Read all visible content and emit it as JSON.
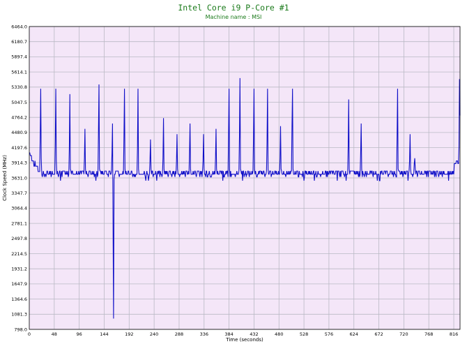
{
  "chart_data": {
    "type": "line",
    "title": "Intel Core i9 P-Core #1",
    "subtitle": "Machine name : MSI",
    "xlabel": "Time (seconds)",
    "ylabel": "Clock Speed (MHz)",
    "xlim": [
      0,
      828
    ],
    "ylim": [
      798.0,
      6464.0
    ],
    "x_ticks": [
      0,
      48,
      96,
      144,
      192,
      240,
      288,
      336,
      384,
      432,
      480,
      528,
      576,
      624,
      672,
      720,
      768,
      816
    ],
    "y_ticks": [
      "6464.0",
      "6180.7",
      "5897.4",
      "5614.1",
      "5330.8",
      "5047.5",
      "4764.2",
      "4480.9",
      "4197.6",
      "3914.3",
      "3631.0",
      "3347.7",
      "3064.4",
      "2781.1",
      "2497.8",
      "2214.5",
      "1931.2",
      "1647.9",
      "1364.6",
      "1081.3",
      "798.0"
    ],
    "grid": true,
    "legend": false,
    "colors": {
      "plot_bg": "#f4e6f8",
      "grid": "#b9b9c4",
      "line": "#1010c8",
      "title": "#1a7a1a"
    },
    "series": [
      {
        "baseline": 3700,
        "x": [
          0,
          1,
          2,
          3,
          4,
          5,
          6,
          7,
          8,
          9,
          10,
          11,
          12,
          13,
          14,
          15,
          16,
          17,
          18,
          19,
          20,
          21,
          22,
          23,
          24,
          25,
          26,
          27,
          28,
          29,
          30,
          31,
          32,
          33,
          34,
          35,
          36,
          37,
          38,
          39,
          40,
          41,
          42,
          43,
          44,
          45,
          46,
          47,
          48,
          49,
          50,
          51,
          52,
          53,
          54,
          55,
          56,
          57,
          58,
          59,
          60,
          61,
          62,
          63,
          64,
          65,
          66,
          67,
          68,
          69,
          70,
          71,
          72,
          73,
          74,
          75,
          76,
          77,
          78,
          79,
          80,
          81,
          82,
          83,
          84,
          85,
          86,
          87,
          88,
          89,
          90,
          91,
          92,
          93,
          94,
          95,
          96,
          97,
          98,
          99,
          100,
          101,
          102,
          103,
          104,
          105,
          106,
          107,
          108,
          109,
          110,
          111,
          112,
          113,
          114,
          115,
          116,
          117,
          118,
          119,
          120,
          121,
          122,
          123,
          124,
          125,
          126,
          127,
          128,
          129,
          130,
          131,
          132,
          133,
          134,
          135,
          136,
          137,
          138,
          139,
          140,
          141,
          142,
          143,
          144,
          145,
          146,
          147,
          148,
          149,
          150,
          151,
          152,
          153,
          154,
          155,
          156,
          157,
          158,
          159,
          160,
          161,
          162,
          163,
          164,
          165,
          166,
          167,
          168,
          169,
          170,
          171,
          172,
          173,
          174,
          175,
          176,
          177,
          178,
          179,
          180,
          181,
          182,
          183,
          184,
          185,
          186,
          187,
          188,
          189,
          190,
          191,
          192,
          193,
          194,
          195,
          196,
          197,
          198,
          199,
          200,
          201,
          202,
          203,
          204,
          205,
          206,
          207,
          208,
          209,
          210,
          211,
          212,
          213,
          214,
          215,
          216,
          217,
          218,
          219,
          220,
          221,
          222,
          223,
          224,
          225,
          226,
          227,
          228,
          229,
          230,
          231,
          232,
          233,
          234,
          235,
          236,
          237,
          238,
          239,
          240,
          241,
          242,
          243,
          244,
          245,
          246,
          247,
          248,
          249,
          250,
          251,
          252,
          253,
          254,
          255,
          256,
          257,
          258,
          259,
          260,
          261,
          262,
          263,
          264,
          265,
          266,
          267,
          268,
          269,
          270,
          271,
          272,
          273,
          274,
          275,
          276,
          277,
          278,
          279,
          280,
          281,
          282,
          283,
          284,
          285,
          286,
          287,
          288,
          289,
          290,
          291,
          292,
          293,
          294,
          295,
          296,
          297,
          298,
          299,
          300,
          301,
          302,
          303,
          304,
          305,
          306,
          307,
          308,
          309,
          310,
          311,
          312,
          313,
          314,
          315,
          316,
          317,
          318,
          319,
          320,
          321,
          322,
          323,
          324,
          325,
          326,
          327,
          328,
          329,
          330,
          331,
          332,
          333,
          334,
          335,
          336,
          337,
          338,
          339,
          340,
          341,
          342,
          343,
          344,
          345,
          346,
          347,
          348,
          349,
          350,
          351,
          352,
          353,
          354,
          355,
          356,
          357,
          358,
          359,
          360,
          361,
          362,
          363,
          364,
          365,
          366,
          367,
          368,
          369,
          370,
          371,
          372,
          373,
          374,
          375,
          376,
          377,
          378,
          379,
          380,
          381,
          382,
          383,
          384,
          385,
          386,
          387,
          388,
          389,
          390,
          391,
          392,
          393,
          394,
          395,
          396,
          397,
          398,
          399,
          400,
          401,
          402,
          403,
          404,
          405,
          406,
          407,
          408,
          409,
          410,
          411,
          412,
          413,
          414,
          415,
          416,
          417,
          418,
          419,
          420,
          421,
          422,
          423,
          424,
          425,
          426,
          427,
          428,
          429,
          430,
          431,
          432,
          433,
          434,
          435,
          436,
          437,
          438,
          439,
          440,
          441,
          442,
          443,
          444,
          445,
          446,
          447,
          448,
          449,
          450,
          451,
          452,
          453,
          454,
          455,
          456,
          457,
          458,
          459,
          460,
          461,
          462,
          463,
          464,
          465,
          466,
          467,
          468,
          469,
          470,
          471,
          472,
          473,
          474,
          475,
          476,
          477,
          478,
          479,
          480,
          481,
          482,
          483,
          484,
          485,
          486,
          487,
          488,
          489,
          490,
          491,
          492,
          493,
          494,
          495,
          496,
          497,
          498,
          499,
          500,
          501,
          502,
          503,
          504,
          505,
          506,
          507,
          508,
          509,
          510,
          511,
          512,
          513,
          514,
          515,
          516,
          517,
          518,
          519,
          520,
          521,
          522,
          523,
          524,
          525,
          526,
          527,
          528,
          529,
          530,
          531,
          532,
          533,
          534,
          535,
          536,
          537,
          538,
          539,
          540,
          541,
          542,
          543,
          544,
          545,
          546,
          547,
          548,
          549,
          550,
          551,
          552,
          553,
          554,
          555,
          556,
          557,
          558,
          559,
          560,
          561,
          562,
          563,
          564,
          565,
          566,
          567,
          568,
          569,
          570,
          571,
          572,
          573,
          574,
          575,
          576,
          577,
          578,
          579,
          580,
          581,
          582,
          583,
          584,
          585,
          586,
          587,
          588,
          589,
          590,
          591,
          592,
          593,
          594,
          595,
          596,
          597,
          598,
          599,
          600,
          601,
          602,
          603,
          604,
          605,
          606,
          607,
          608,
          609,
          610,
          611,
          612,
          613,
          614,
          615,
          616,
          617,
          618,
          619,
          620,
          621,
          622,
          623,
          624,
          625,
          626,
          627,
          628,
          629,
          630,
          631,
          632,
          633,
          634,
          635,
          636,
          637,
          638,
          639,
          640,
          641,
          642,
          643,
          644,
          645,
          646,
          647,
          648,
          649,
          650,
          651,
          652,
          653,
          654,
          655,
          656,
          657,
          658,
          659,
          660,
          661,
          662,
          663,
          664,
          665,
          666,
          667,
          668,
          669,
          670,
          671,
          672,
          673,
          674,
          675,
          676,
          677,
          678,
          679,
          680,
          681,
          682,
          683,
          684,
          685,
          686,
          687,
          688,
          689,
          690,
          691,
          692,
          693,
          694,
          695,
          696,
          697,
          698,
          699,
          700,
          701,
          702,
          703,
          704,
          705,
          706,
          707,
          708,
          709,
          710,
          711,
          712,
          713,
          714,
          715,
          716,
          717,
          718,
          719,
          720,
          721,
          722,
          723,
          724,
          725,
          726,
          727,
          728,
          729,
          730,
          731,
          732,
          733,
          734,
          735,
          736,
          737,
          738,
          739,
          740,
          741,
          742,
          743,
          744,
          745,
          746,
          747,
          748,
          749,
          750,
          751,
          752,
          753,
          754,
          755,
          756,
          757,
          758,
          759,
          760,
          761,
          762,
          763,
          764,
          765,
          766,
          767,
          768,
          769,
          770,
          771,
          772,
          773,
          774,
          775,
          776,
          777,
          778,
          779,
          780,
          781,
          782,
          783,
          784,
          785,
          786,
          787,
          788,
          789,
          790,
          791,
          792,
          793,
          794,
          795,
          796,
          797,
          798,
          799,
          800,
          801,
          802,
          803,
          804,
          805,
          806,
          807,
          808,
          809,
          810,
          811,
          812,
          813,
          814,
          815,
          816,
          817,
          818,
          819,
          820,
          821,
          822,
          823,
          824,
          825,
          826,
          827,
          828
        ],
        "y_overrides": [
          [
            0,
            4100
          ],
          [
            1,
            4100
          ],
          [
            2,
            4050
          ],
          [
            3,
            4050
          ],
          [
            4,
            4050
          ],
          [
            5,
            3950
          ],
          [
            6,
            3950
          ],
          [
            7,
            3950
          ],
          [
            8,
            3950
          ],
          [
            9,
            3850
          ],
          [
            10,
            3850
          ],
          [
            11,
            3950
          ],
          [
            12,
            3850
          ],
          [
            13,
            3850
          ],
          [
            14,
            3850
          ],
          [
            15,
            3850
          ],
          [
            16,
            3850
          ],
          [
            17,
            3750
          ],
          [
            18,
            3750
          ],
          [
            19,
            3750
          ],
          [
            20,
            3750
          ],
          [
            21,
            4400
          ],
          [
            22,
            5300
          ],
          [
            23,
            4000
          ],
          [
            50,
            4300
          ],
          [
            51,
            5300
          ],
          [
            52,
            3950
          ],
          [
            77,
            4200
          ],
          [
            78,
            5200
          ],
          [
            79,
            3800
          ],
          [
            106,
            4000
          ],
          [
            107,
            4550
          ],
          [
            108,
            3800
          ],
          [
            133,
            4500
          ],
          [
            134,
            5380
          ],
          [
            135,
            3800
          ],
          [
            159,
            4100
          ],
          [
            160,
            4650
          ],
          [
            161,
            2800
          ],
          [
            162,
            1000
          ],
          [
            163,
            3600
          ],
          [
            182,
            4400
          ],
          [
            183,
            5300
          ],
          [
            184,
            3800
          ],
          [
            208,
            4200
          ],
          [
            209,
            5300
          ],
          [
            210,
            3800
          ],
          [
            232,
            3950
          ],
          [
            233,
            4350
          ],
          [
            234,
            3800
          ],
          [
            257,
            4000
          ],
          [
            258,
            4750
          ],
          [
            259,
            3800
          ],
          [
            283,
            3950
          ],
          [
            284,
            4450
          ],
          [
            285,
            3800
          ],
          [
            308,
            4100
          ],
          [
            309,
            4650
          ],
          [
            310,
            3800
          ],
          [
            334,
            3950
          ],
          [
            335,
            4450
          ],
          [
            336,
            3800
          ],
          [
            358,
            4000
          ],
          [
            359,
            4550
          ],
          [
            360,
            3800
          ],
          [
            383,
            4400
          ],
          [
            384,
            5300
          ],
          [
            385,
            3800
          ],
          [
            404,
            4400
          ],
          [
            405,
            5500
          ],
          [
            406,
            3800
          ],
          [
            431,
            4400
          ],
          [
            432,
            5300
          ],
          [
            433,
            3800
          ],
          [
            457,
            4300
          ],
          [
            458,
            5300
          ],
          [
            459,
            3800
          ],
          [
            482,
            4000
          ],
          [
            483,
            4600
          ],
          [
            484,
            3800
          ],
          [
            505,
            4600
          ],
          [
            506,
            5300
          ],
          [
            507,
            3800
          ],
          [
            613,
            4200
          ],
          [
            614,
            5100
          ],
          [
            615,
            3800
          ],
          [
            637,
            4100
          ],
          [
            638,
            4650
          ],
          [
            639,
            3800
          ],
          [
            707,
            4400
          ],
          [
            708,
            5300
          ],
          [
            709,
            3800
          ],
          [
            731,
            3950
          ],
          [
            732,
            4450
          ],
          [
            733,
            3800
          ],
          [
            740,
            3900
          ],
          [
            741,
            4000
          ],
          [
            742,
            3800
          ],
          [
            817,
            3900
          ],
          [
            818,
            3900
          ],
          [
            819,
            3900
          ],
          [
            820,
            3900
          ],
          [
            821,
            3950
          ],
          [
            822,
            3950
          ],
          [
            823,
            3950
          ],
          [
            824,
            3900
          ],
          [
            825,
            3900
          ],
          [
            826,
            4200
          ],
          [
            827,
            5480
          ],
          [
            828,
            4800
          ]
        ]
      }
    ]
  }
}
